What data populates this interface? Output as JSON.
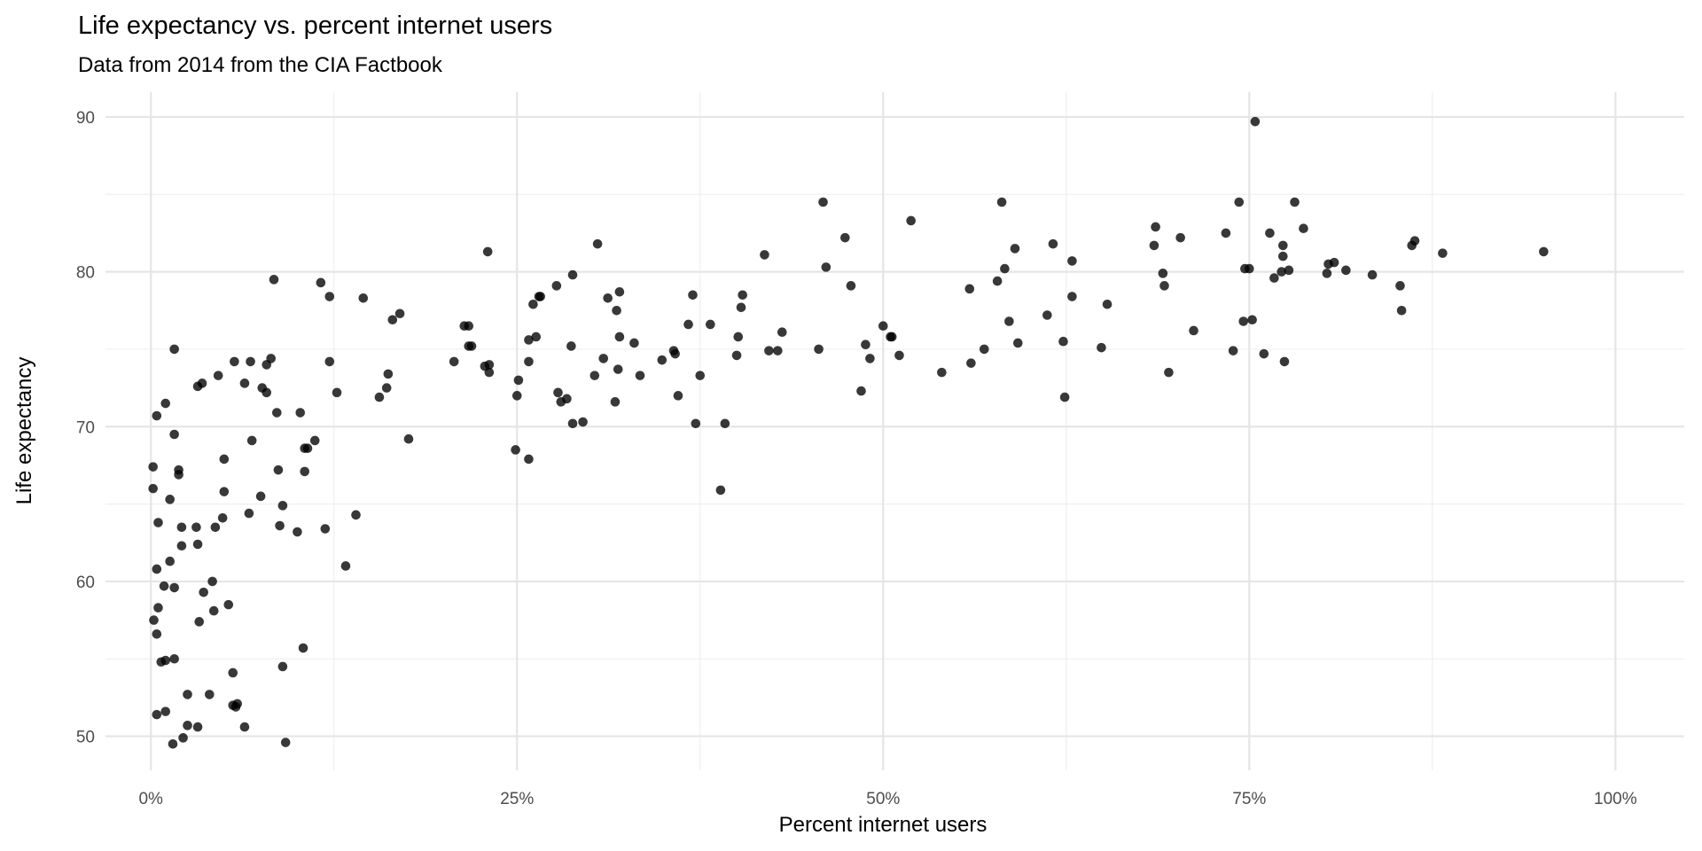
{
  "chart_data": {
    "type": "scatter",
    "title": "Life expectancy vs. percent internet users",
    "subtitle": "Data from 2014 from the CIA Factbook",
    "xlabel": "Percent internet users",
    "ylabel": "Life expectancy",
    "xlim": [
      -3.1,
      104.7
    ],
    "ylim": [
      47.8,
      91.6
    ],
    "x_ticks": [
      0,
      25,
      50,
      75,
      100
    ],
    "x_tick_labels": [
      "0%",
      "25%",
      "50%",
      "75%",
      "100%"
    ],
    "y_ticks": [
      50,
      60,
      70,
      80,
      90
    ],
    "y_tick_labels": [
      "50",
      "60",
      "70",
      "80",
      "90"
    ],
    "grid": true,
    "point_color": "#000000",
    "points": [
      [
        0.15,
        67.4
      ],
      [
        0.15,
        66.0
      ],
      [
        0.4,
        70.7
      ],
      [
        0.5,
        63.8
      ],
      [
        0.4,
        60.8
      ],
      [
        0.5,
        58.3
      ],
      [
        0.2,
        57.5
      ],
      [
        0.4,
        56.6
      ],
      [
        0.4,
        51.4
      ],
      [
        0.7,
        54.8
      ],
      [
        1.0,
        54.9
      ],
      [
        1.0,
        51.6
      ],
      [
        1.0,
        71.5
      ],
      [
        0.9,
        59.7
      ],
      [
        1.3,
        65.3
      ],
      [
        1.3,
        61.3
      ],
      [
        1.6,
        75.0
      ],
      [
        1.6,
        69.5
      ],
      [
        1.6,
        59.6
      ],
      [
        1.6,
        55.0
      ],
      [
        1.5,
        49.5
      ],
      [
        1.9,
        67.2
      ],
      [
        1.9,
        66.9
      ],
      [
        2.1,
        63.5
      ],
      [
        2.1,
        62.3
      ],
      [
        2.2,
        49.9
      ],
      [
        2.5,
        50.7
      ],
      [
        2.5,
        52.7
      ],
      [
        3.1,
        63.5
      ],
      [
        3.2,
        72.6
      ],
      [
        3.5,
        72.8
      ],
      [
        3.2,
        62.4
      ],
      [
        3.3,
        57.4
      ],
      [
        3.2,
        50.6
      ],
      [
        3.6,
        59.3
      ],
      [
        4.0,
        52.7
      ],
      [
        4.2,
        60.0
      ],
      [
        4.3,
        58.1
      ],
      [
        4.4,
        63.5
      ],
      [
        4.6,
        73.3
      ],
      [
        4.9,
        64.1
      ],
      [
        5.0,
        67.9
      ],
      [
        5.0,
        65.8
      ],
      [
        5.3,
        58.5
      ],
      [
        5.6,
        52.0
      ],
      [
        5.6,
        54.1
      ],
      [
        5.7,
        74.2
      ],
      [
        5.8,
        51.9
      ],
      [
        5.9,
        52.1
      ],
      [
        6.4,
        72.8
      ],
      [
        6.4,
        50.6
      ],
      [
        6.8,
        74.2
      ],
      [
        6.7,
        64.4
      ],
      [
        6.9,
        69.1
      ],
      [
        7.5,
        65.5
      ],
      [
        7.6,
        72.5
      ],
      [
        7.9,
        72.2
      ],
      [
        7.9,
        74.0
      ],
      [
        8.2,
        74.4
      ],
      [
        8.4,
        79.5
      ],
      [
        8.6,
        70.9
      ],
      [
        8.7,
        67.2
      ],
      [
        8.8,
        63.6
      ],
      [
        9.0,
        64.9
      ],
      [
        9.0,
        54.5
      ],
      [
        9.2,
        49.6
      ],
      [
        10.0,
        63.2
      ],
      [
        10.2,
        70.9
      ],
      [
        10.5,
        68.6
      ],
      [
        10.5,
        67.1
      ],
      [
        10.7,
        68.6
      ],
      [
        10.4,
        55.7
      ],
      [
        11.2,
        69.1
      ],
      [
        11.6,
        79.3
      ],
      [
        11.9,
        63.4
      ],
      [
        12.2,
        78.4
      ],
      [
        12.2,
        74.2
      ],
      [
        12.7,
        72.2
      ],
      [
        13.3,
        61.0
      ],
      [
        14.0,
        64.3
      ],
      [
        14.5,
        78.3
      ],
      [
        15.6,
        71.9
      ],
      [
        16.1,
        72.5
      ],
      [
        16.2,
        73.4
      ],
      [
        16.5,
        76.9
      ],
      [
        17.0,
        77.3
      ],
      [
        17.6,
        69.2
      ],
      [
        20.7,
        74.2
      ],
      [
        21.4,
        76.5
      ],
      [
        21.7,
        76.5
      ],
      [
        21.7,
        75.2
      ],
      [
        21.9,
        75.2
      ],
      [
        22.8,
        73.9
      ],
      [
        23.0,
        81.3
      ],
      [
        23.1,
        74.0
      ],
      [
        23.1,
        73.5
      ],
      [
        24.9,
        68.5
      ],
      [
        25.1,
        73.0
      ],
      [
        25.0,
        72.0
      ],
      [
        25.8,
        67.9
      ],
      [
        25.8,
        74.2
      ],
      [
        25.8,
        75.6
      ],
      [
        26.1,
        77.9
      ],
      [
        26.3,
        75.8
      ],
      [
        26.5,
        78.4
      ],
      [
        26.6,
        78.4
      ],
      [
        27.7,
        79.1
      ],
      [
        27.8,
        72.2
      ],
      [
        28.0,
        71.6
      ],
      [
        28.4,
        71.8
      ],
      [
        28.7,
        75.2
      ],
      [
        28.8,
        70.2
      ],
      [
        28.8,
        79.8
      ],
      [
        29.5,
        70.3
      ],
      [
        30.3,
        73.3
      ],
      [
        30.5,
        81.8
      ],
      [
        30.9,
        74.4
      ],
      [
        31.2,
        78.3
      ],
      [
        31.7,
        71.6
      ],
      [
        31.9,
        73.7
      ],
      [
        31.8,
        77.5
      ],
      [
        32.0,
        78.7
      ],
      [
        32.0,
        75.8
      ],
      [
        33.0,
        75.4
      ],
      [
        33.4,
        73.3
      ],
      [
        34.9,
        74.3
      ],
      [
        35.7,
        74.9
      ],
      [
        35.8,
        74.7
      ],
      [
        36.0,
        72.0
      ],
      [
        36.7,
        76.6
      ],
      [
        37.0,
        78.5
      ],
      [
        37.2,
        70.2
      ],
      [
        37.5,
        73.3
      ],
      [
        38.2,
        76.6
      ],
      [
        38.9,
        65.9
      ],
      [
        39.2,
        70.2
      ],
      [
        40.0,
        74.6
      ],
      [
        40.1,
        75.8
      ],
      [
        40.3,
        77.7
      ],
      [
        40.4,
        78.5
      ],
      [
        41.9,
        81.1
      ],
      [
        42.2,
        74.9
      ],
      [
        42.8,
        74.9
      ],
      [
        43.1,
        76.1
      ],
      [
        45.6,
        75.0
      ],
      [
        45.9,
        84.5
      ],
      [
        46.1,
        80.3
      ],
      [
        47.4,
        82.2
      ],
      [
        47.8,
        79.1
      ],
      [
        48.5,
        72.3
      ],
      [
        48.8,
        75.3
      ],
      [
        49.1,
        74.4
      ],
      [
        50.0,
        76.5
      ],
      [
        50.5,
        75.8
      ],
      [
        50.6,
        75.8
      ],
      [
        51.1,
        74.6
      ],
      [
        51.9,
        83.3
      ],
      [
        54.0,
        73.5
      ],
      [
        55.9,
        78.9
      ],
      [
        56.0,
        74.1
      ],
      [
        56.9,
        75.0
      ],
      [
        57.8,
        79.4
      ],
      [
        58.1,
        84.5
      ],
      [
        58.3,
        80.2
      ],
      [
        58.6,
        76.8
      ],
      [
        59.0,
        81.5
      ],
      [
        59.2,
        75.4
      ],
      [
        61.2,
        77.2
      ],
      [
        61.6,
        81.8
      ],
      [
        62.3,
        75.5
      ],
      [
        62.4,
        71.9
      ],
      [
        62.9,
        78.4
      ],
      [
        62.9,
        80.7
      ],
      [
        64.9,
        75.1
      ],
      [
        65.3,
        77.9
      ],
      [
        68.5,
        81.7
      ],
      [
        68.6,
        82.9
      ],
      [
        69.1,
        79.9
      ],
      [
        69.2,
        79.1
      ],
      [
        69.5,
        73.5
      ],
      [
        70.3,
        82.2
      ],
      [
        71.2,
        76.2
      ],
      [
        73.4,
        82.5
      ],
      [
        73.9,
        74.9
      ],
      [
        74.3,
        84.5
      ],
      [
        74.6,
        76.8
      ],
      [
        74.7,
        80.2
      ],
      [
        75.0,
        80.2
      ],
      [
        75.2,
        76.9
      ],
      [
        75.4,
        89.7
      ],
      [
        76.0,
        74.7
      ],
      [
        76.4,
        82.5
      ],
      [
        76.7,
        79.6
      ],
      [
        77.2,
        80.0
      ],
      [
        77.3,
        81.7
      ],
      [
        77.3,
        81.0
      ],
      [
        77.4,
        74.2
      ],
      [
        77.7,
        80.1
      ],
      [
        78.1,
        84.5
      ],
      [
        78.7,
        82.8
      ],
      [
        80.3,
        79.9
      ],
      [
        80.4,
        80.5
      ],
      [
        80.8,
        80.6
      ],
      [
        81.6,
        80.1
      ],
      [
        83.4,
        79.8
      ],
      [
        85.3,
        79.1
      ],
      [
        85.4,
        77.5
      ],
      [
        86.1,
        81.7
      ],
      [
        86.3,
        82.0
      ],
      [
        88.2,
        81.2
      ],
      [
        95.1,
        81.3
      ]
    ]
  }
}
